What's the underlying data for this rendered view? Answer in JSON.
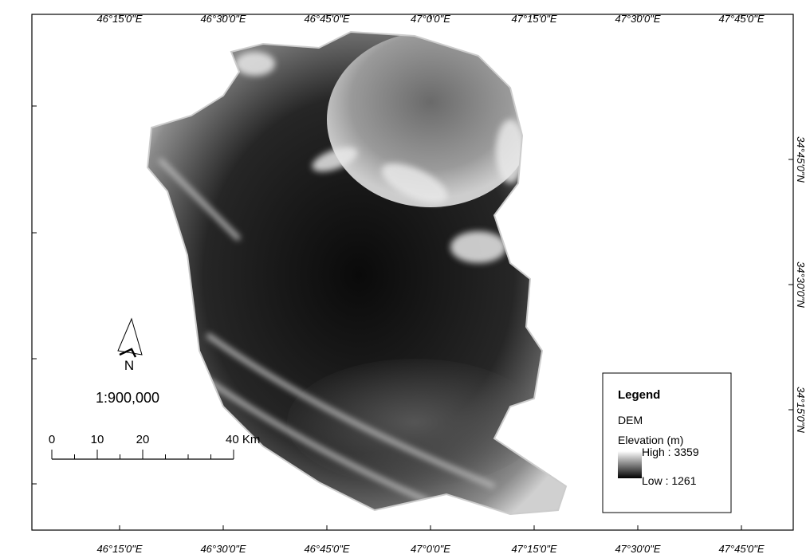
{
  "map": {
    "top_labels": [
      "46°15'0\"E",
      "46°30'0\"E",
      "46°45'0\"E",
      "47°0'0\"E",
      "47°15'0\"E",
      "47°30'0\"E",
      "47°45'0\"E"
    ],
    "bottom_labels": [
      "46°15'0\"E",
      "46°30'0\"E",
      "46°45'0\"E",
      "47°0'0\"E",
      "47°15'0\"E",
      "47°30'0\"E",
      "47°45'0\"E"
    ],
    "right_labels": [
      "34°45'0\"N",
      "34°30'0\"N",
      "34°15'0\"N"
    ],
    "north": "N",
    "scale": "1:900,000",
    "scale_bar": [
      "0",
      "10",
      "20",
      "40 Km"
    ],
    "legend": {
      "title": "Legend",
      "layer": "DEM",
      "field": "Elevation (m)",
      "high": "High : 3359",
      "low": "Low : 1261"
    }
  }
}
